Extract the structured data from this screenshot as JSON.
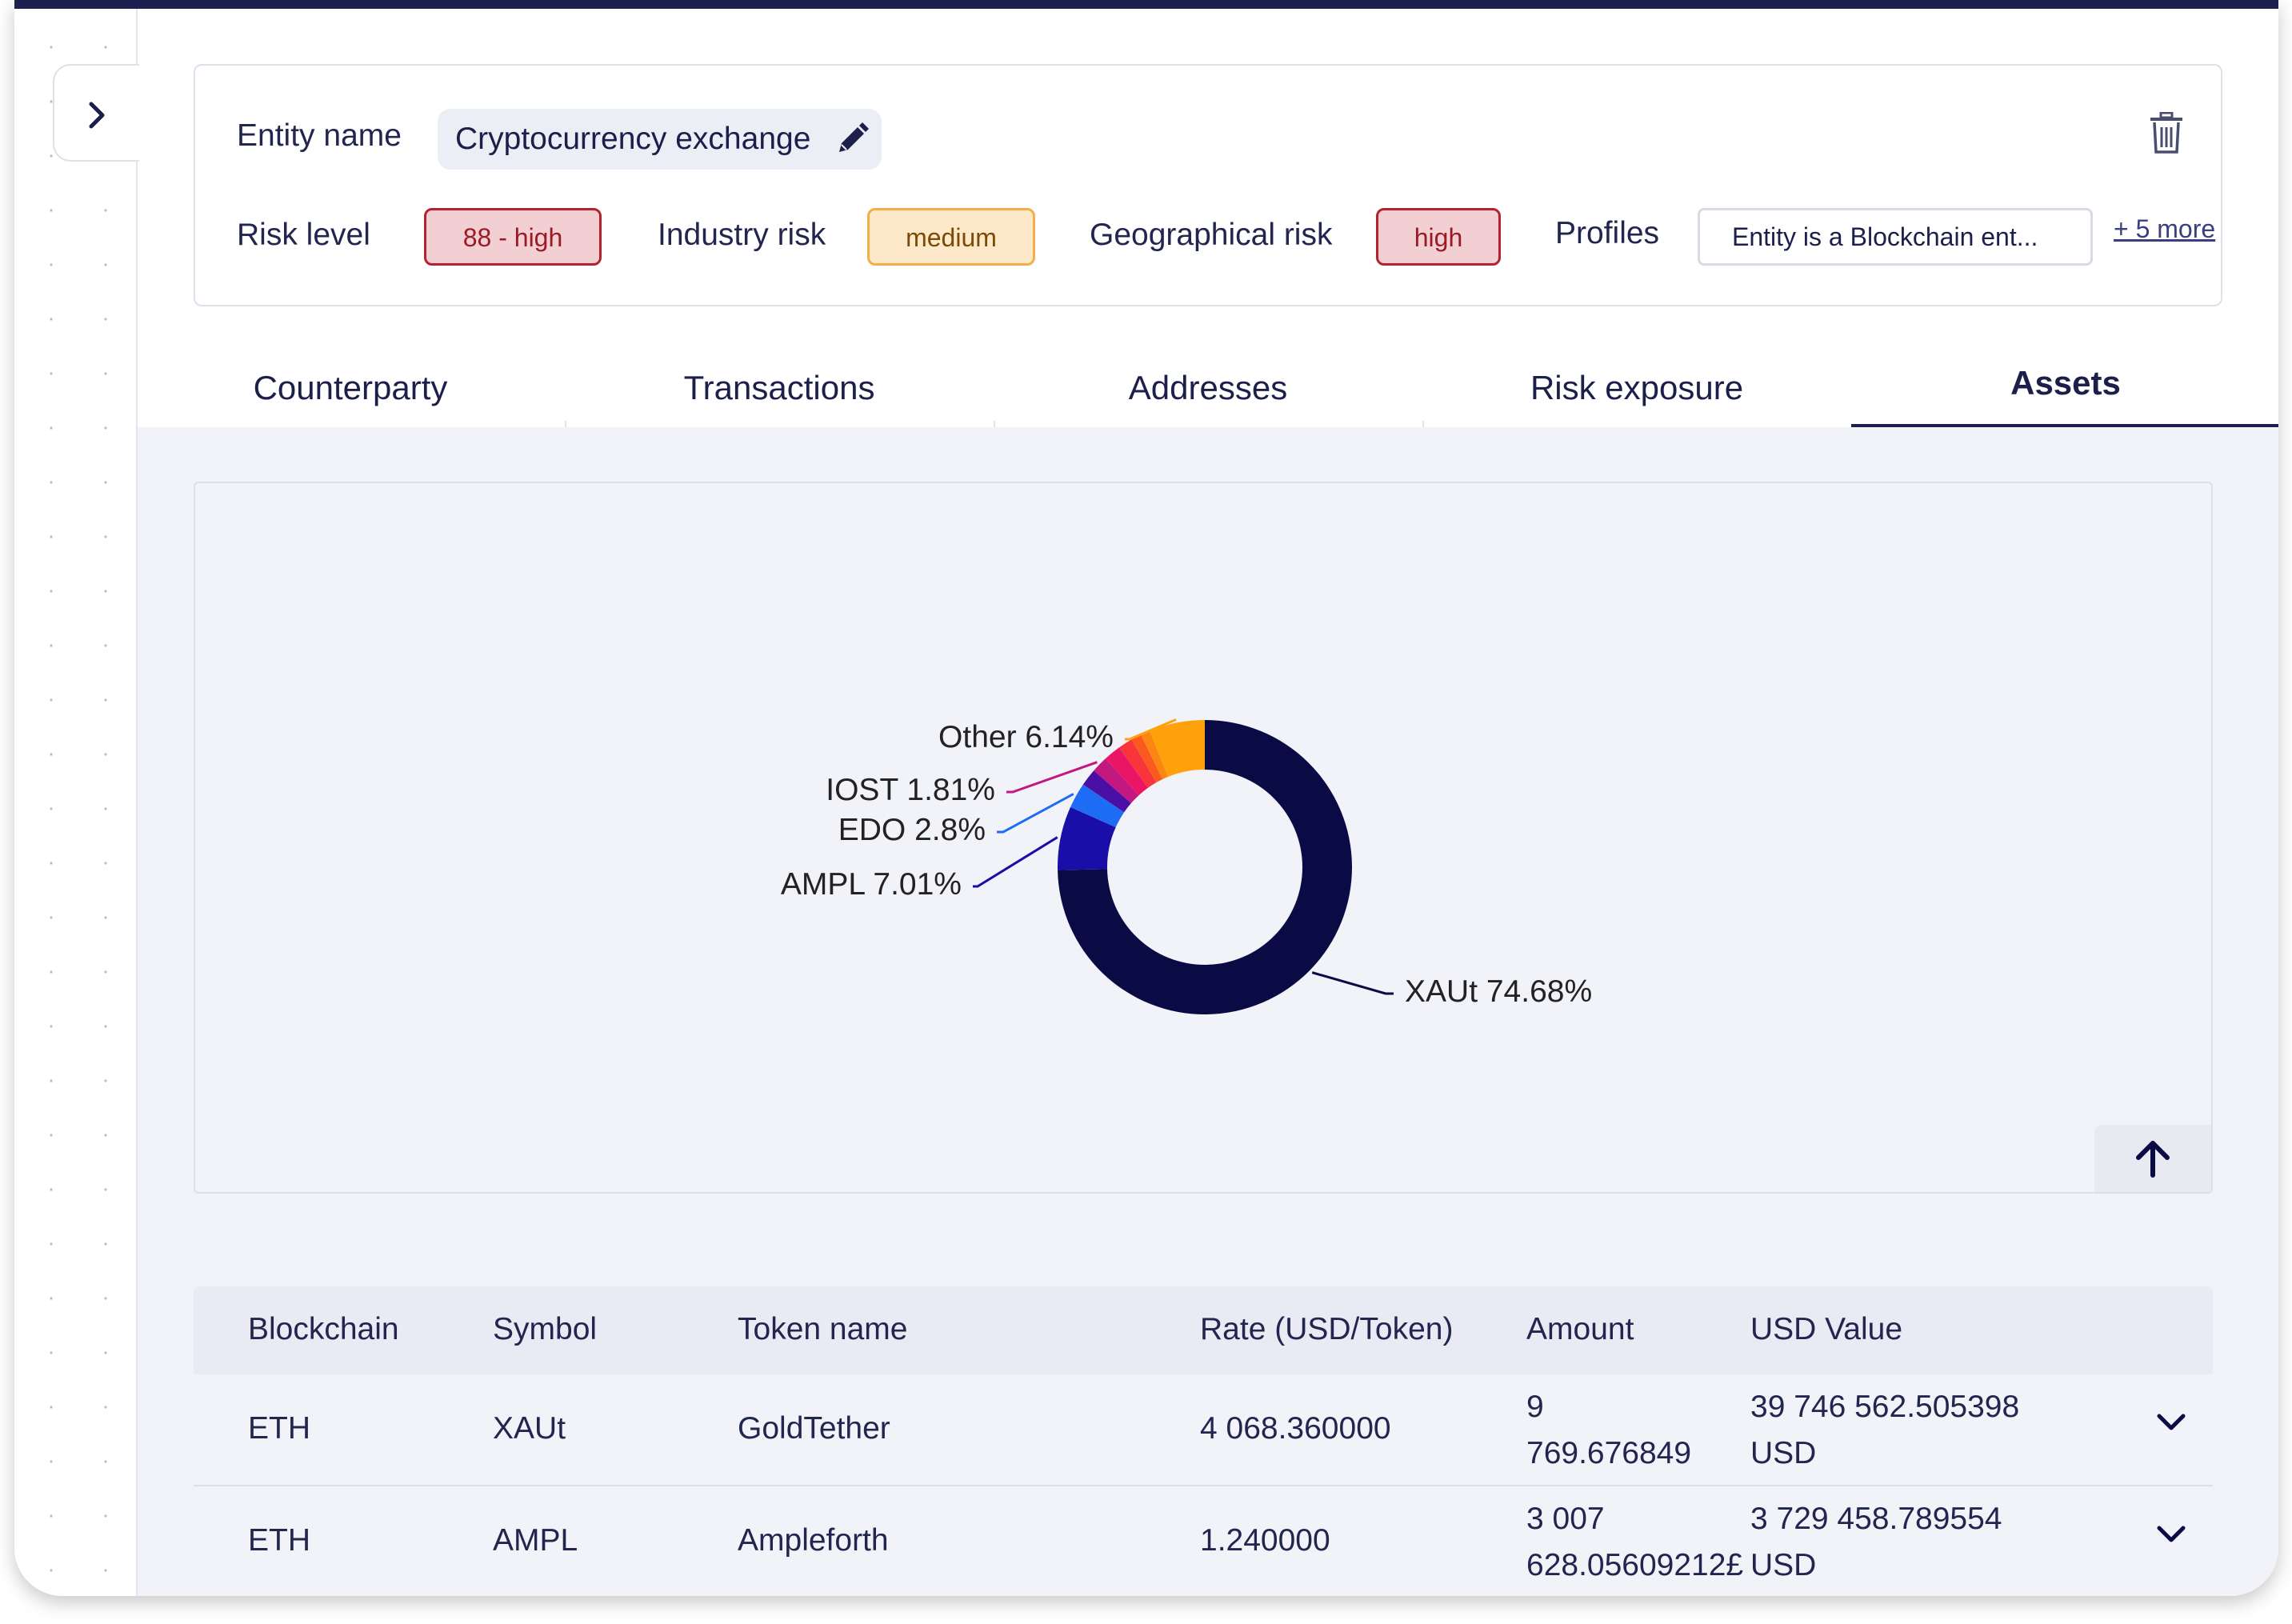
{
  "entity": {
    "name_label": "Entity name",
    "name_value": "Cryptocurrency exchange",
    "risk_level_label": "Risk level",
    "risk_level_value": "88 - high",
    "industry_risk_label": "Industry risk",
    "industry_risk_value": "medium",
    "geo_risk_label": "Geographical risk",
    "geo_risk_value": "high",
    "profiles_label": "Profiles",
    "profiles_value": "Entity is a Blockchain ent...",
    "more_link": "+ 5 more"
  },
  "tabs": [
    {
      "label": "Counterparty"
    },
    {
      "label": "Transactions"
    },
    {
      "label": "Addresses"
    },
    {
      "label": "Risk exposure"
    },
    {
      "label": "Assets"
    }
  ],
  "active_tab": "Assets",
  "chart_data": {
    "type": "pie",
    "style": "donut",
    "slices": [
      {
        "label": "XAUt 74.68%",
        "name": "XAUt",
        "value": 74.68,
        "color": "#0a0b45",
        "labeled": true
      },
      {
        "label": "AMPL 7.01%",
        "name": "AMPL",
        "value": 7.01,
        "color": "#1a0ea8",
        "labeled": true
      },
      {
        "label": "EDO 2.8%",
        "name": "EDO",
        "value": 2.8,
        "color": "#1e6cf5",
        "labeled": true
      },
      {
        "label": "",
        "name": "",
        "value": 1.9,
        "color": "#4a10a5",
        "labeled": false
      },
      {
        "label": "IOST 1.81%",
        "name": "IOST",
        "value": 1.81,
        "color": "#c2187f",
        "labeled": true
      },
      {
        "label": "",
        "name": "",
        "value": 1.9,
        "color": "#ea1565",
        "labeled": false
      },
      {
        "label": "",
        "name": "",
        "value": 1.6,
        "color": "#f7353b",
        "labeled": false
      },
      {
        "label": "",
        "name": "",
        "value": 1.15,
        "color": "#fb5a1e",
        "labeled": false
      },
      {
        "label": "",
        "name": "",
        "value": 1.0,
        "color": "#fd8512",
        "labeled": false
      },
      {
        "label": "Other 6.14%",
        "name": "Other",
        "value": 6.14,
        "color": "#ffa10a",
        "labeled": true
      }
    ]
  },
  "table": {
    "headers": [
      "Blockchain",
      "Symbol",
      "Token name",
      "Rate (USD/Token)",
      "Amount",
      "USD Value"
    ],
    "rows": [
      {
        "blockchain": "ETH",
        "symbol": "XAUt",
        "token_name": "GoldTether",
        "rate": "4 068.360000",
        "amount_line1": "9",
        "amount_line2": "769.676849",
        "usd_line1": "39 746 562.505398",
        "usd_line2": "USD"
      },
      {
        "blockchain": "ETH",
        "symbol": "AMPL",
        "token_name": "Ampleforth",
        "rate": "1.240000",
        "amount_line1": "3 007",
        "amount_line2": "628.05609212£",
        "usd_line1": "3 729 458.789554",
        "usd_line2": "USD"
      }
    ]
  },
  "icons": {
    "expand": "chevron-right-icon",
    "edit": "pencil-icon",
    "delete": "trash-icon",
    "scroll_up": "arrow-up-icon",
    "row_expand": "chevron-down-icon"
  }
}
